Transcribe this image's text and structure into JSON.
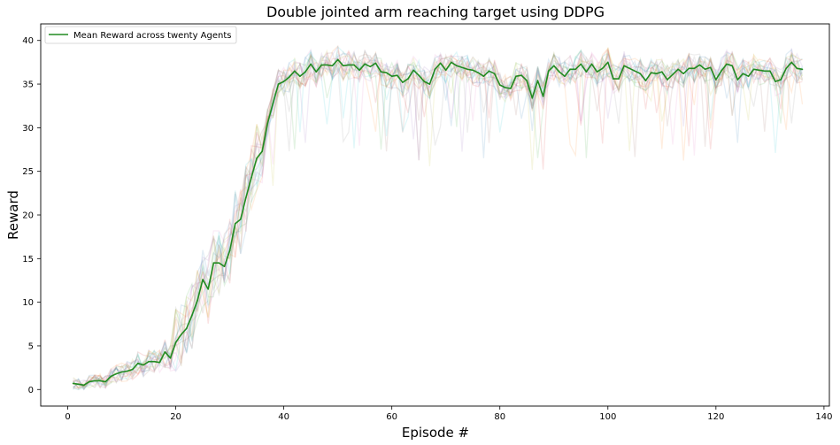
{
  "chart_data": {
    "type": "line",
    "title": "Double jointed arm reaching target using DDPG",
    "xlabel": "Episode #",
    "ylabel": "Reward",
    "xlim": [
      -5,
      141
    ],
    "ylim": [
      -1.9,
      41.9
    ],
    "xticks": [
      0,
      20,
      40,
      60,
      80,
      100,
      120,
      140
    ],
    "yticks": [
      0,
      5,
      10,
      15,
      20,
      25,
      30,
      35,
      40
    ],
    "grid": false,
    "legend_position": "top-left",
    "series": [
      {
        "name": "Mean Reward across twenty Agents",
        "color": "#228b22",
        "x": [
          1,
          2,
          3,
          4,
          5,
          6,
          7,
          8,
          9,
          10,
          11,
          12,
          13,
          14,
          15,
          16,
          17,
          18,
          19,
          20,
          21,
          22,
          23,
          24,
          25,
          26,
          27,
          28,
          29,
          30,
          31,
          32,
          33,
          34,
          35,
          36,
          37,
          38,
          39,
          40,
          41,
          42,
          43,
          44,
          45,
          46,
          47,
          48,
          49,
          50,
          51,
          52,
          53,
          54,
          55,
          56,
          57,
          58,
          59,
          60,
          61,
          62,
          63,
          64,
          65,
          66,
          67,
          68,
          69,
          70,
          71,
          72,
          73,
          74,
          75,
          76,
          77,
          78,
          79,
          80,
          81,
          82,
          83,
          84,
          85,
          86,
          87,
          88,
          89,
          90,
          91,
          92,
          93,
          94,
          95,
          96,
          97,
          98,
          99,
          100,
          101,
          102,
          103,
          104,
          105,
          106,
          107,
          108,
          109,
          110,
          111,
          112,
          113,
          114,
          115,
          116,
          117,
          118,
          119,
          120,
          121,
          122,
          123,
          124,
          125,
          126,
          127,
          128,
          129,
          130,
          131,
          132,
          133,
          134,
          135,
          136
        ],
        "values": [
          0.7,
          0.6,
          0.5,
          0.9,
          1.0,
          1.0,
          0.9,
          1.5,
          1.8,
          2.0,
          2.1,
          2.3,
          3.0,
          2.8,
          3.2,
          3.2,
          3.1,
          4.3,
          3.6,
          5.4,
          6.3,
          7.0,
          8.5,
          10.2,
          12.6,
          11.5,
          14.5,
          14.5,
          14.1,
          15.9,
          19.0,
          19.5,
          22.0,
          24.3,
          26.5,
          27.3,
          30.5,
          32.8,
          35.0,
          35.3,
          35.8,
          36.5,
          35.9,
          36.4,
          37.3,
          36.4,
          37.2,
          37.2,
          37.1,
          37.8,
          37.1,
          37.2,
          37.2,
          36.6,
          37.3,
          37.0,
          37.4,
          36.4,
          36.3,
          35.9,
          36.0,
          35.2,
          35.6,
          36.6,
          36.0,
          35.3,
          35.0,
          36.7,
          37.4,
          36.6,
          37.5,
          37.1,
          36.9,
          36.7,
          36.6,
          36.3,
          35.9,
          36.5,
          36.2,
          34.9,
          34.6,
          34.5,
          35.9,
          36.0,
          35.4,
          33.4,
          35.4,
          33.6,
          36.5,
          37.1,
          36.4,
          35.9,
          36.7,
          36.7,
          37.3,
          36.4,
          37.3,
          36.4,
          36.8,
          37.5,
          35.6,
          35.6,
          37.1,
          36.8,
          36.5,
          36.2,
          35.4,
          36.3,
          36.2,
          36.4,
          35.5,
          36.1,
          36.7,
          36.2,
          36.8,
          36.8,
          37.2,
          36.7,
          36.9,
          35.5,
          36.5,
          37.3,
          37.1,
          35.5,
          36.2,
          35.9,
          36.7,
          36.6,
          36.5,
          36.5,
          35.3,
          35.5,
          36.8,
          37.5,
          36.8,
          36.7
        ]
      }
    ]
  }
}
